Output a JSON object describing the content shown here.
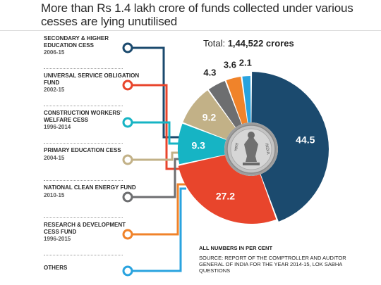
{
  "title": "More than Rs 1.4 lakh crore of funds collected under various cesses are lying unutilised",
  "total": {
    "label": "Total:",
    "value": "1,44,522 crores"
  },
  "note": "ALL NUMBERS IN PER CENT",
  "source": "SOURCE: REPORT OF THE COMPTROLLER AND AUDITOR GENERAL OF INDIA FOR THE YEAR 2014-15, LOK SABHA QUESTIONS",
  "funds": [
    {
      "name": "SECONDARY & HIGHER EDUCATION CESS",
      "years": "2006-15",
      "color": "#1b4a6e"
    },
    {
      "name": "UNIVERSAL SERVICE OBLIGATION FUND",
      "years": "2002-15",
      "color": "#e8452c"
    },
    {
      "name": "CONSTRUCTION WORKERS' WELFARE CESS",
      "years": "1996-2014",
      "color": "#16b4c4"
    },
    {
      "name": "PRIMARY EDUCATION CESS",
      "years": "2004-15",
      "color": "#c2b187"
    },
    {
      "name": "NATIONAL CLEAN ENERGY FUND",
      "years": "2010-15",
      "color": "#6d6e70"
    },
    {
      "name": "RESEARCH & DEVELOPMENT CESS FUND",
      "years": "1996-2015",
      "color": "#f0832a"
    },
    {
      "name": "OTHERS",
      "years": "",
      "color": "#29a3df"
    }
  ],
  "chart_data": {
    "type": "pie",
    "title": "More than Rs 1.4 lakh crore of funds collected under various cesses are lying unutilised",
    "categories": [
      "SECONDARY & HIGHER EDUCATION CESS",
      "UNIVERSAL SERVICE OBLIGATION FUND",
      "CONSTRUCTION WORKERS' WELFARE CESS",
      "PRIMARY EDUCATION CESS",
      "NATIONAL CLEAN ENERGY FUND",
      "RESEARCH & DEVELOPMENT CESS FUND",
      "OTHERS"
    ],
    "values": [
      44.5,
      27.2,
      9.3,
      9.2,
      4.3,
      3.6,
      2.1
    ],
    "value_labels": [
      "44.5",
      "27.2",
      "9.3",
      "9.2",
      "4.3",
      "3.6",
      "2.1"
    ],
    "colors": [
      "#1b4a6e",
      "#e8452c",
      "#16b4c4",
      "#c2b187",
      "#6d6e70",
      "#f0832a",
      "#29a3df"
    ],
    "unit": "per cent",
    "center_image": "coin-emblem"
  }
}
